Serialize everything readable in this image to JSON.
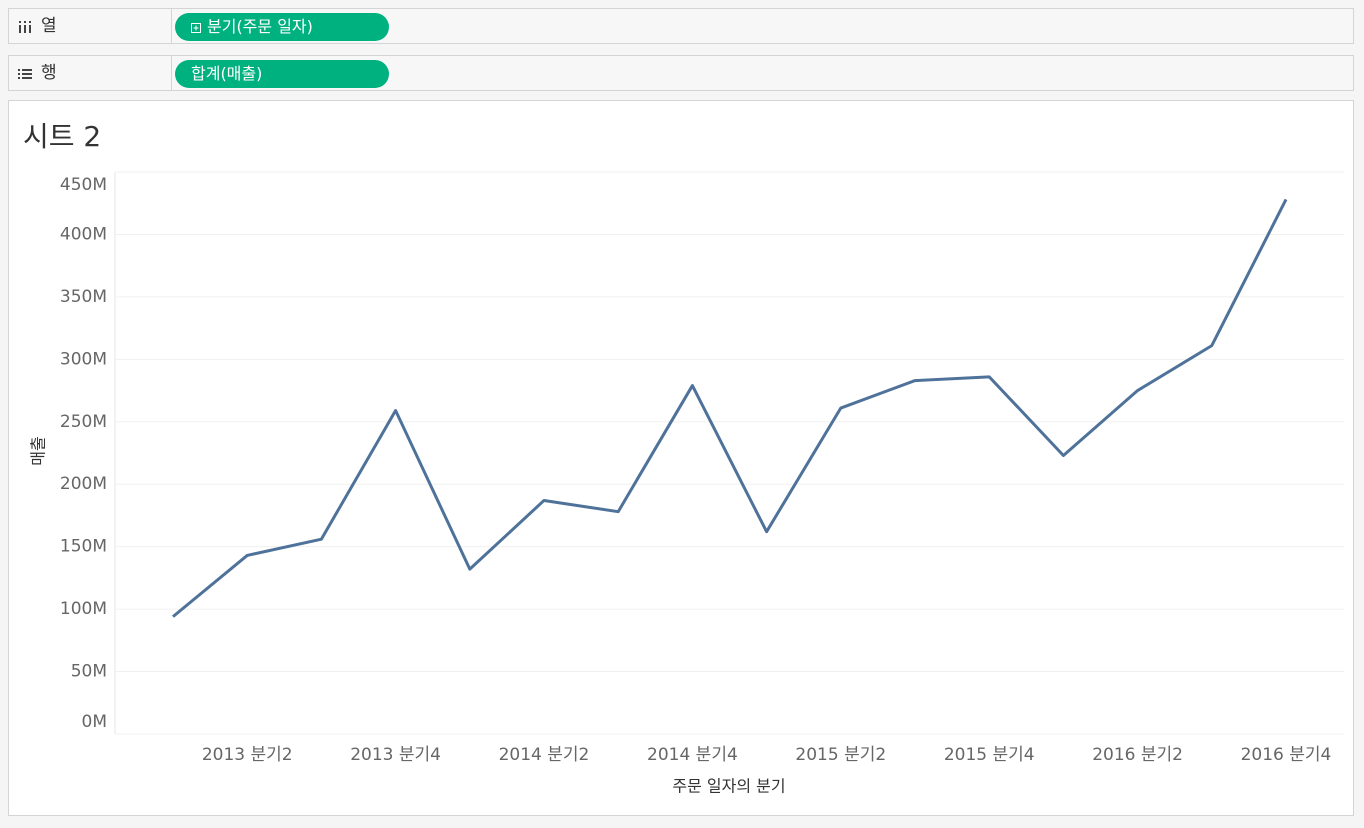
{
  "shelves": {
    "columns": {
      "label": "열",
      "pill": "분기(주문 일자)"
    },
    "rows": {
      "label": "행",
      "pill": "합계(매출)"
    }
  },
  "sheet": {
    "title": "시트 2"
  },
  "chart_data": {
    "type": "line",
    "x_label": "주문 일자의 분기",
    "y_label": "매출",
    "categories": [
      null,
      "2013 분기2",
      null,
      "2013 분기4",
      null,
      "2014 분기2",
      null,
      "2014 분기4",
      null,
      "2015 분기2",
      null,
      "2015 분기4",
      null,
      "2016 분기2",
      null,
      "2016 분기4"
    ],
    "values": [
      94,
      143,
      156,
      259,
      132,
      187,
      178,
      279,
      162,
      261,
      283,
      286,
      223,
      275,
      311,
      428
    ],
    "color": "#4e729a",
    "ylim": [
      0,
      450
    ],
    "yticks": [
      {
        "value": 0,
        "label": "0M"
      },
      {
        "value": 50,
        "label": "50M"
      },
      {
        "value": 100,
        "label": "100M"
      },
      {
        "value": 150,
        "label": "150M"
      },
      {
        "value": 200,
        "label": "200M"
      },
      {
        "value": 250,
        "label": "250M"
      },
      {
        "value": 300,
        "label": "300M"
      },
      {
        "value": 350,
        "label": "350M"
      },
      {
        "value": 400,
        "label": "400M"
      },
      {
        "value": 450,
        "label": "450M"
      }
    ],
    "grid": true
  }
}
